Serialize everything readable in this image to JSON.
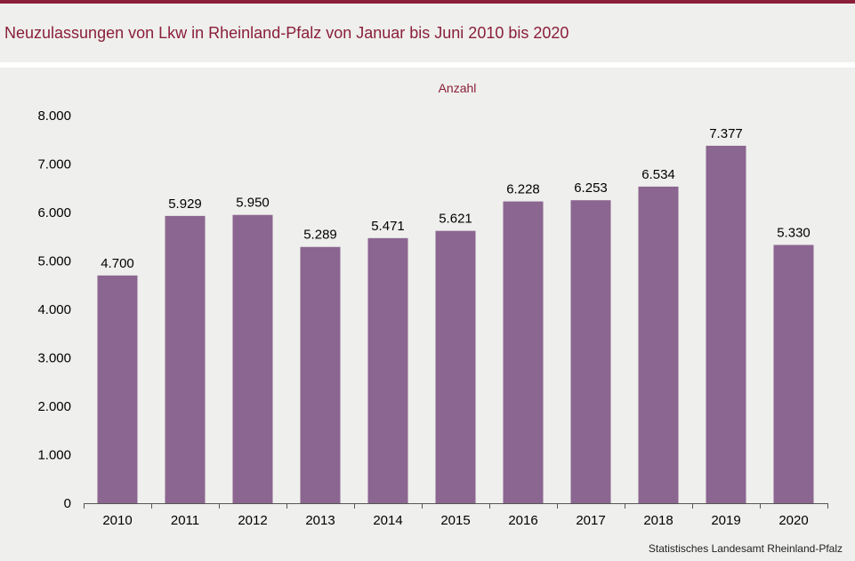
{
  "title": "Neuzulassungen von Lkw in Rheinland-Pfalz von Januar bis Juni 2010 bis 2020",
  "source": "Statistisches Landesamt  Rheinland-Pfalz",
  "colors": {
    "accent": "#8a1f3a",
    "bar": "#8b6690",
    "background": "#efefed"
  },
  "chart_data": {
    "type": "bar",
    "title": "Neuzulassungen von Lkw in Rheinland-Pfalz von Januar bis Juni 2010 bis 2020",
    "ylabel": "Anzahl",
    "xlabel": "",
    "categories": [
      "2010",
      "2011",
      "2012",
      "2013",
      "2014",
      "2015",
      "2016",
      "2017",
      "2018",
      "2019",
      "2020"
    ],
    "values": [
      4700,
      5929,
      5950,
      5289,
      5471,
      5621,
      6228,
      6253,
      6534,
      7377,
      5330
    ],
    "value_labels": [
      "4.700",
      "5.929",
      "5.950",
      "5.289",
      "5.471",
      "5.621",
      "6.228",
      "6.253",
      "6.534",
      "7.377",
      "5.330"
    ],
    "ylim": [
      0,
      8000
    ],
    "yticks": [
      0,
      1000,
      2000,
      3000,
      4000,
      5000,
      6000,
      7000,
      8000
    ],
    "ytick_labels": [
      "0",
      "1.000",
      "2.000",
      "3.000",
      "4.000",
      "5.000",
      "6.000",
      "7.000",
      "8.000"
    ],
    "grid": false,
    "legend": "none"
  }
}
